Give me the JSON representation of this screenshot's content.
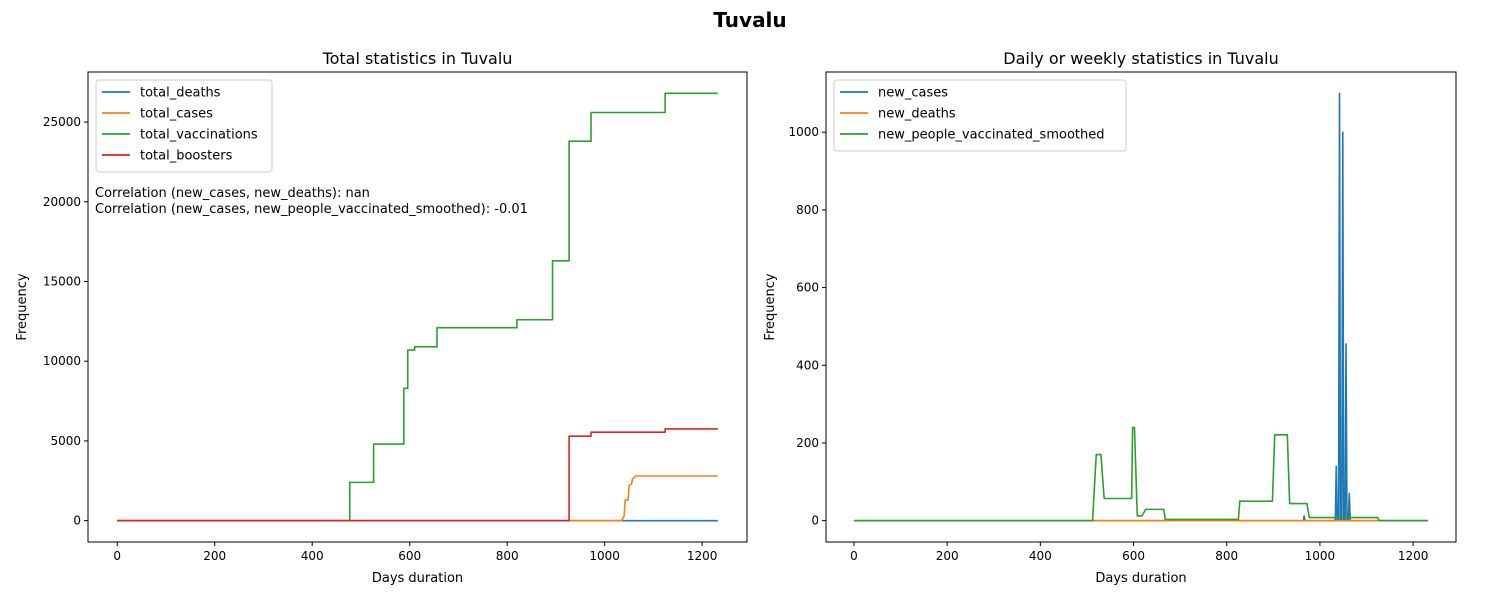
{
  "suptitle": "Tuvalu",
  "colors": {
    "blue": "#1f77b4",
    "orange": "#ff7f0e",
    "green": "#2ca02c",
    "red": "#d62728"
  },
  "chart_data": [
    {
      "type": "line",
      "title": "Total statistics in Tuvalu",
      "xlabel": "Days duration",
      "ylabel": "Frequency",
      "xlim": [
        -60,
        1292
      ],
      "ylim": [
        -1340,
        28140
      ],
      "xticks": [
        0,
        200,
        400,
        600,
        800,
        1000,
        1200
      ],
      "yticks": [
        0,
        5000,
        10000,
        15000,
        20000,
        25000
      ],
      "legend_position": "upper-left",
      "annotations": [
        "Correlation (new_cases, new_deaths): nan",
        "Correlation (new_cases, new_people_vaccinated_smoothed): -0.01"
      ],
      "series": [
        {
          "name": "total_deaths",
          "color": "#1f77b4",
          "points": [
            [
              0,
              0
            ],
            [
              1232,
              0
            ]
          ]
        },
        {
          "name": "total_cases",
          "color": "#ff7f0e",
          "points": [
            [
              0,
              0
            ],
            [
              1035,
              0
            ],
            [
              1040,
              300
            ],
            [
              1042,
              1300
            ],
            [
              1048,
              1300
            ],
            [
              1050,
              2200
            ],
            [
              1055,
              2300
            ],
            [
              1057,
              2600
            ],
            [
              1060,
              2700
            ],
            [
              1065,
              2800
            ],
            [
              1232,
              2800
            ]
          ]
        },
        {
          "name": "total_vaccinations",
          "color": "#2ca02c",
          "points": [
            [
              0,
              0
            ],
            [
              477,
              0
            ],
            [
              477,
              2400
            ],
            [
              526,
              2400
            ],
            [
              526,
              4800
            ],
            [
              588,
              4800
            ],
            [
              588,
              8300
            ],
            [
              596,
              8300
            ],
            [
              596,
              10700
            ],
            [
              610,
              10700
            ],
            [
              610,
              10900
            ],
            [
              656,
              10900
            ],
            [
              656,
              12100
            ],
            [
              820,
              12100
            ],
            [
              820,
              12600
            ],
            [
              893,
              12600
            ],
            [
              893,
              16300
            ],
            [
              927,
              16300
            ],
            [
              927,
              23800
            ],
            [
              972,
              23800
            ],
            [
              972,
              25600
            ],
            [
              1124,
              25600
            ],
            [
              1124,
              26800
            ],
            [
              1232,
              26800
            ]
          ]
        },
        {
          "name": "total_boosters",
          "color": "#d62728",
          "points": [
            [
              0,
              0
            ],
            [
              927,
              0
            ],
            [
              927,
              5300
            ],
            [
              972,
              5300
            ],
            [
              972,
              5550
            ],
            [
              1124,
              5550
            ],
            [
              1124,
              5750
            ],
            [
              1232,
              5750
            ]
          ]
        }
      ]
    },
    {
      "type": "line",
      "title": "Daily or weekly statistics in Tuvalu",
      "xlabel": "Days duration",
      "ylabel": "Frequency",
      "xlim": [
        -60,
        1292
      ],
      "ylim": [
        -55,
        1155
      ],
      "xticks": [
        0,
        200,
        400,
        600,
        800,
        1000,
        1200
      ],
      "yticks": [
        0,
        200,
        400,
        600,
        800,
        1000
      ],
      "legend_position": "upper-left",
      "series": [
        {
          "name": "new_cases",
          "color": "#1f77b4",
          "points": [
            [
              0,
              0
            ],
            [
              965,
              0
            ],
            [
              966,
              12
            ],
            [
              968,
              0
            ],
            [
              1033,
              0
            ],
            [
              1035,
              140
            ],
            [
              1037,
              0
            ],
            [
              1040,
              0
            ],
            [
              1042,
              1100
            ],
            [
              1044,
              0
            ],
            [
              1047,
              0
            ],
            [
              1049,
              1000
            ],
            [
              1051,
              0
            ],
            [
              1054,
              0
            ],
            [
              1056,
              455
            ],
            [
              1058,
              0
            ],
            [
              1061,
              0
            ],
            [
              1063,
              70
            ],
            [
              1065,
              0
            ],
            [
              1232,
              0
            ]
          ]
        },
        {
          "name": "new_deaths",
          "color": "#ff7f0e",
          "points": [
            [
              0,
              0
            ],
            [
              1232,
              0
            ]
          ]
        },
        {
          "name": "new_people_vaccinated_smoothed",
          "color": "#2ca02c",
          "points": [
            [
              0,
              0
            ],
            [
              512,
              0
            ],
            [
              520,
              170
            ],
            [
              530,
              170
            ],
            [
              537,
              57
            ],
            [
              596,
              57
            ],
            [
              598,
              240
            ],
            [
              602,
              240
            ],
            [
              608,
              12
            ],
            [
              618,
              12
            ],
            [
              626,
              29
            ],
            [
              665,
              29
            ],
            [
              668,
              3
            ],
            [
              825,
              3
            ],
            [
              828,
              50
            ],
            [
              898,
              50
            ],
            [
              903,
              221
            ],
            [
              930,
              221
            ],
            [
              935,
              44
            ],
            [
              972,
              44
            ],
            [
              977,
              8
            ],
            [
              1124,
              8
            ],
            [
              1127,
              0
            ],
            [
              1232,
              0
            ]
          ]
        }
      ]
    }
  ]
}
